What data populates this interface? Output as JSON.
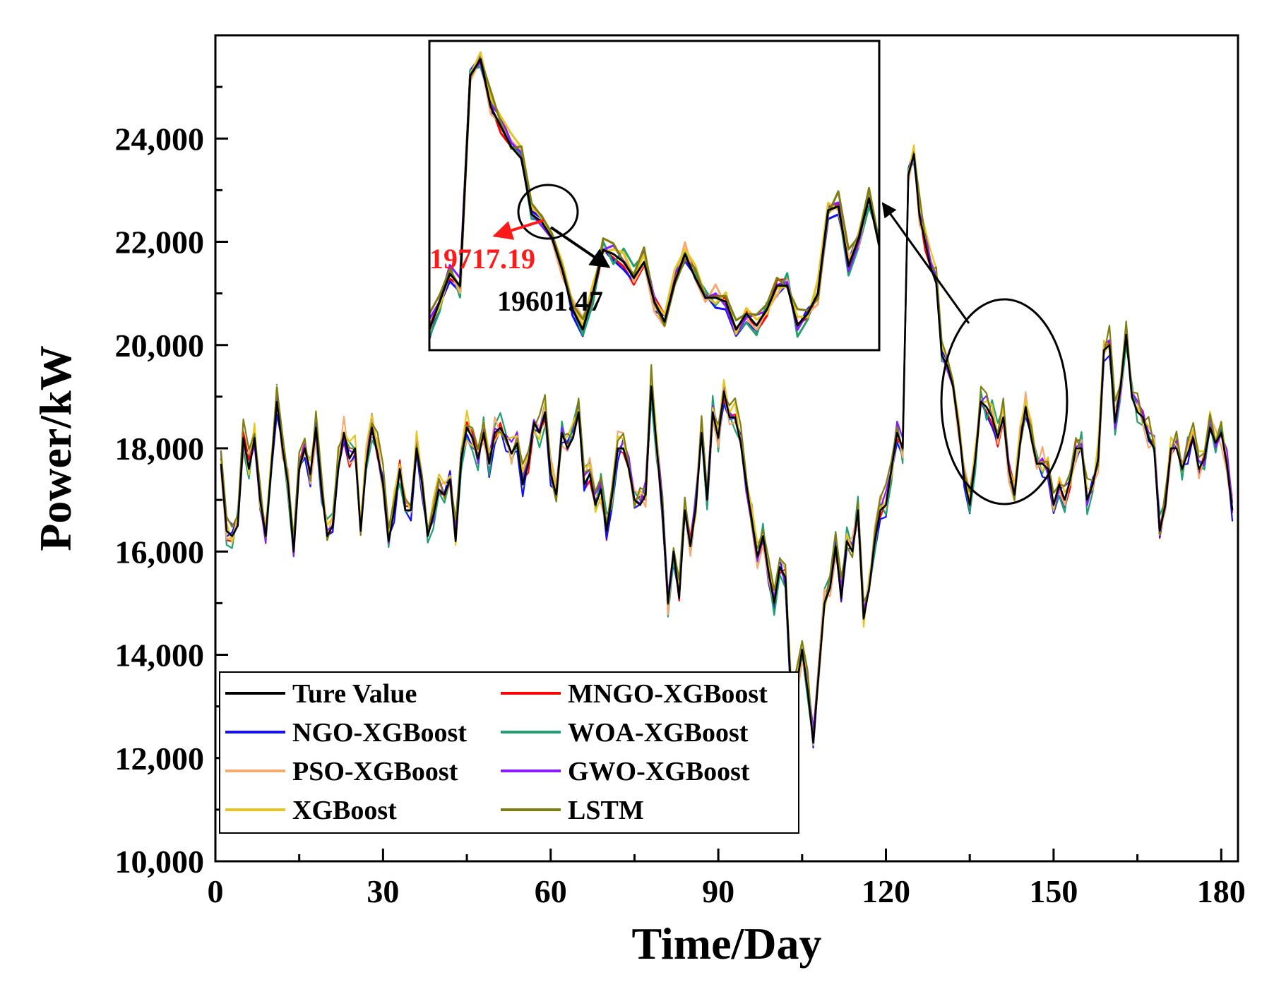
{
  "chart_data": {
    "type": "line",
    "title": "",
    "xlabel": "Time/Day",
    "ylabel": "Power/kW",
    "xlim": [
      0,
      183
    ],
    "ylim": [
      10000,
      26000
    ],
    "xticks": [
      0,
      30,
      60,
      90,
      120,
      150,
      180
    ],
    "xtick_labels": [
      "0",
      "30",
      "60",
      "90",
      "120",
      "150",
      "180"
    ],
    "yticks": [
      10000,
      12000,
      14000,
      16000,
      18000,
      20000,
      22000,
      24000
    ],
    "ytick_labels": [
      "10,000",
      "12,000",
      "14,000",
      "16,000",
      "18,000",
      "20,000",
      "22,000",
      "24,000"
    ],
    "legend_position": "bottom-left",
    "base_series_name": "Ture Value",
    "true_values": [
      17700,
      16400,
      16300,
      16500,
      18200,
      17600,
      18200,
      17000,
      16300,
      17600,
      18900,
      18000,
      17300,
      16000,
      17600,
      18000,
      17500,
      18400,
      17200,
      16300,
      16500,
      17600,
      18300,
      17800,
      18000,
      16400,
      17700,
      18400,
      17900,
      17300,
      16200,
      16800,
      17600,
      16800,
      16800,
      18000,
      17300,
      16300,
      16700,
      17200,
      17100,
      17400,
      16200,
      17800,
      18400,
      18200,
      17800,
      18300,
      17700,
      18300,
      18400,
      18200,
      17900,
      18100,
      17300,
      17700,
      18500,
      18300,
      18700,
      17500,
      17100,
      18300,
      18000,
      18200,
      18700,
      17300,
      17500,
      16900,
      17200,
      16400,
      17100,
      18000,
      18000,
      17600,
      17000,
      16900,
      17100,
      19200,
      18000,
      16800,
      15000,
      16000,
      15100,
      16800,
      16100,
      16900,
      18300,
      17000,
      18700,
      18200,
      19100,
      18600,
      18600,
      18100,
      17300,
      16600,
      15900,
      16300,
      15600,
      15000,
      15700,
      15500,
      13300,
      13400,
      14100,
      13300,
      12300,
      13700,
      15000,
      15300,
      16100,
      15100,
      16200,
      16000,
      16800,
      14700,
      15300,
      16200,
      16800,
      16900,
      17600,
      18300,
      18000,
      23300,
      23700,
      22500,
      22000,
      21500,
      21200,
      19800,
      19600,
      19200,
      18400,
      17400,
      16900,
      17800,
      18900,
      18800,
      18600,
      18200,
      18600,
      17600,
      17100,
      18100,
      18800,
      18200,
      17700,
      17700,
      17600,
      16900,
      17300,
      17000,
      17400,
      18000,
      18000,
      17000,
      17300,
      17800,
      19900,
      20000,
      18500,
      19200,
      20200,
      19000,
      18700,
      18600,
      18200,
      18000,
      16400,
      16900,
      18000,
      18000,
      17600,
      17900,
      18200,
      17600,
      17800,
      18400,
      18100,
      18300,
      17700,
      16800
    ],
    "series": [
      {
        "name": "Ture Value",
        "color": "#000000",
        "seed": 0,
        "amp": 0,
        "bias": 0
      },
      {
        "name": "MNGO-XGBoost",
        "color": "#ff0000",
        "seed": 11,
        "amp": 180,
        "bias": 0
      },
      {
        "name": "NGO-XGBoost",
        "color": "#1010ff",
        "seed": 23,
        "amp": 220,
        "bias": -40
      },
      {
        "name": "WOA-XGBoost",
        "color": "#20a070",
        "seed": 37,
        "amp": 320,
        "bias": 20
      },
      {
        "name": "PSO-XGBoost",
        "color": "#f5aa70",
        "seed": 41,
        "amp": 300,
        "bias": 30
      },
      {
        "name": "GWO-XGBoost",
        "color": "#8a1aff",
        "seed": 53,
        "amp": 220,
        "bias": 60
      },
      {
        "name": "XGBoost",
        "color": "#e8c51e",
        "seed": 67,
        "amp": 260,
        "bias": 90
      },
      {
        "name": "LSTM",
        "color": "#7e7e10",
        "seed": 79,
        "amp": 280,
        "bias": 140
      }
    ],
    "legend_items": [
      {
        "label": "Ture Value",
        "color": "#000000"
      },
      {
        "label": "MNGO-XGBoost",
        "color": "#ff0000"
      },
      {
        "label": "NGO-XGBoost",
        "color": "#1010ff"
      },
      {
        "label": "WOA-XGBoost",
        "color": "#20a070"
      },
      {
        "label": "PSO-XGBoost",
        "color": "#f5aa70"
      },
      {
        "label": "GWO-XGBoost",
        "color": "#8a1aff"
      },
      {
        "label": "XGBoost",
        "color": "#e8c51e"
      },
      {
        "label": "LSTM",
        "color": "#7e7e10"
      }
    ],
    "inset": {
      "x_range": [
        120,
        164
      ],
      "annotations": [
        {
          "text": "19717.19",
          "color": "#ff1a1a"
        },
        {
          "text": "19601.47",
          "color": "#000000"
        }
      ]
    }
  }
}
